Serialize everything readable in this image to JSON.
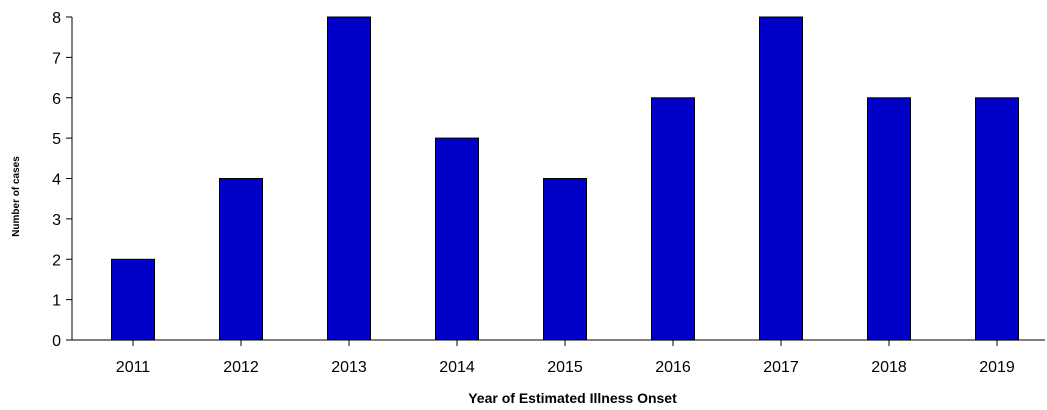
{
  "chart_data": {
    "type": "bar",
    "title": "",
    "xlabel": "Year of Estimated Illness Onset",
    "ylabel": "Number of cases",
    "categories": [
      "2011",
      "2012",
      "2013",
      "2014",
      "2015",
      "2016",
      "2017",
      "2018",
      "2019"
    ],
    "values": [
      2,
      4,
      8,
      5,
      4,
      6,
      8,
      6,
      6
    ],
    "ylim": [
      0,
      8
    ],
    "yticks": [
      0,
      1,
      2,
      3,
      4,
      5,
      6,
      7,
      8
    ],
    "grid": false,
    "legend": "none",
    "colors": {
      "bar_fill": "#0000c8",
      "bar_stroke": "#000000",
      "axis": "#000000"
    }
  }
}
